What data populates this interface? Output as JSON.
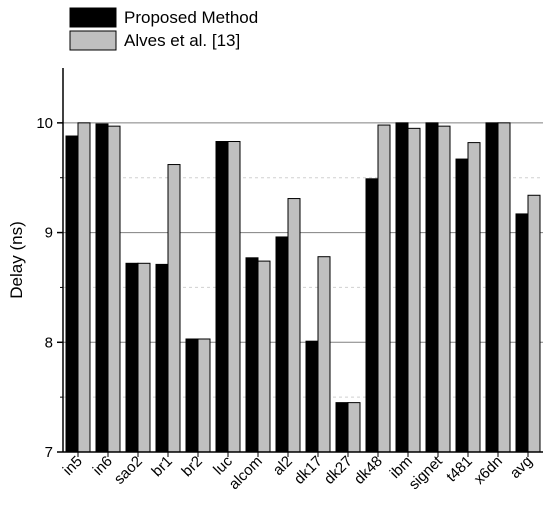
{
  "chart_data": {
    "type": "bar",
    "title": "",
    "xlabel": "",
    "ylabel": "Delay (ns)",
    "ylim": [
      7,
      10.5
    ],
    "yticks": [
      7,
      8,
      9,
      10
    ],
    "grid": "horizontal",
    "legend_position": "top-left",
    "categories": [
      "in5",
      "in6",
      "sao2",
      "br1",
      "br2",
      "luc",
      "alcom",
      "al2",
      "dk17",
      "dk27",
      "dk48",
      "ibm",
      "signet",
      "t481",
      "x6dn",
      "avg"
    ],
    "series": [
      {
        "name": "Proposed Method",
        "color": "#000000",
        "values": [
          9.88,
          9.99,
          8.72,
          8.71,
          8.03,
          9.83,
          8.77,
          8.96,
          8.01,
          7.45,
          9.49,
          10.0,
          10.0,
          9.67,
          10.0,
          9.17
        ]
      },
      {
        "name": "Alves et al. [13]",
        "color": "#c0c0c0",
        "values": [
          10.0,
          9.97,
          8.72,
          9.62,
          8.03,
          9.83,
          8.74,
          9.31,
          8.78,
          7.45,
          9.98,
          9.95,
          9.97,
          9.82,
          10.0,
          9.34
        ]
      }
    ]
  }
}
